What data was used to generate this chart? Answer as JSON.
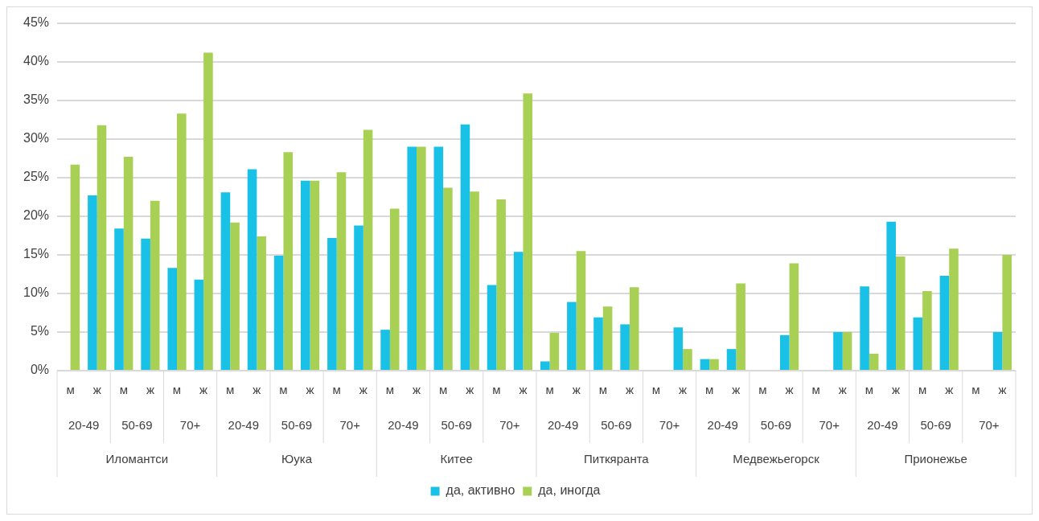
{
  "chart_data": {
    "type": "bar",
    "categories": [
      "м",
      "ж",
      "м",
      "ж",
      "м",
      "ж",
      "м",
      "ж",
      "м",
      "ж",
      "м",
      "ж",
      "м",
      "ж",
      "м",
      "ж",
      "м",
      "ж",
      "м",
      "ж",
      "м",
      "ж",
      "м",
      "ж",
      "м",
      "ж",
      "м",
      "ж",
      "м",
      "ж",
      "м",
      "ж",
      "м",
      "ж",
      "м",
      "ж"
    ],
    "series": [
      {
        "name": "да, активно",
        "color": "#1ac1e6",
        "values": [
          0,
          22.7,
          18.4,
          17.1,
          13.3,
          11.8,
          23.1,
          26.1,
          14.9,
          24.6,
          17.2,
          18.8,
          5.3,
          29.0,
          29.0,
          31.9,
          11.1,
          15.4,
          1.2,
          8.9,
          6.9,
          6.0,
          0,
          5.6,
          1.5,
          2.8,
          0,
          4.6,
          0,
          5.0,
          10.9,
          19.3,
          6.9,
          12.3,
          0,
          5.0
        ]
      },
      {
        "name": "да, иногда",
        "color": "#a8d054",
        "values": [
          26.7,
          31.8,
          27.7,
          22.0,
          33.3,
          41.2,
          19.2,
          17.4,
          28.3,
          24.6,
          25.7,
          31.2,
          21.0,
          29.0,
          23.7,
          23.2,
          22.2,
          35.9,
          4.9,
          15.5,
          8.3,
          10.8,
          0,
          2.8,
          1.5,
          11.3,
          0,
          13.9,
          0,
          5.0,
          2.2,
          14.8,
          10.3,
          15.8,
          0,
          15.0
        ]
      }
    ],
    "ylim": [
      0,
      45
    ],
    "yticks": [
      {
        "value": 0,
        "label": "0%"
      },
      {
        "value": 5,
        "label": "5%"
      },
      {
        "value": 10,
        "label": "10%"
      },
      {
        "value": 15,
        "label": "15%"
      },
      {
        "value": 20,
        "label": "20%"
      },
      {
        "value": 25,
        "label": "25%"
      },
      {
        "value": 30,
        "label": "30%"
      },
      {
        "value": 35,
        "label": "35%"
      },
      {
        "value": 40,
        "label": "40%"
      },
      {
        "value": 45,
        "label": "45%"
      }
    ],
    "grid": "y",
    "legend": "bottom",
    "annotations": [
      "20-49",
      "50-69",
      "70+",
      "20-49",
      "50-69",
      "70+",
      "20-49",
      "50-69",
      "70+",
      "20-49",
      "50-69",
      "70+",
      "20-49",
      "50-69",
      "70+",
      "20-49",
      "50-69",
      "70+",
      "Иломантси",
      "Юука",
      "Китее",
      "Питкяранта",
      "Медвежьегорск",
      "Прионежье"
    ]
  }
}
